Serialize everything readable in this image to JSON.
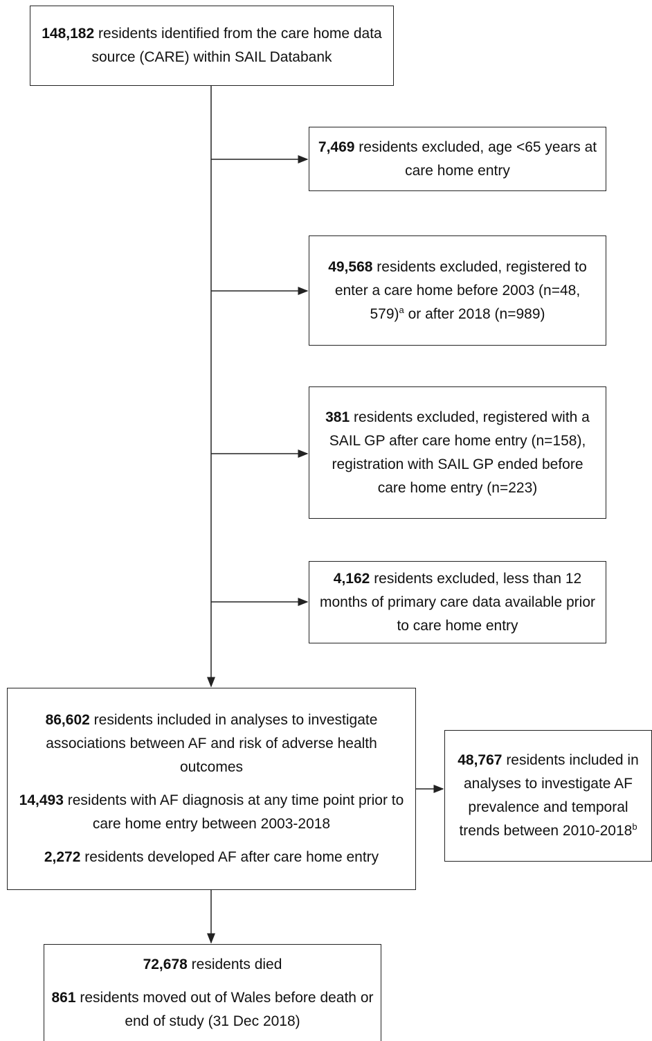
{
  "nodes": [
    {
      "paragraphs": [
        {
          "count": "148,182",
          "text": "residents identified from the care home data source (CARE) within SAIL Databank"
        }
      ]
    },
    {
      "paragraphs": [
        {
          "count": "7,469",
          "text": "residents excluded, age <65 years at care home entry"
        }
      ]
    },
    {
      "paragraphs": [
        {
          "count": "49,568",
          "text": "residents excluded, registered to enter a care home before 2003 (n=48, 579)",
          "sup": "a",
          "text2": "or after 2018 (n=989)"
        }
      ]
    },
    {
      "paragraphs": [
        {
          "count": "381",
          "text": "residents excluded, registered with a SAIL GP after care home entry (n=158), registration with SAIL GP ended before care home entry (n=223)"
        }
      ]
    },
    {
      "paragraphs": [
        {
          "count": "4,162",
          "text": "residents excluded, less than 12 months of primary care data available prior to care home entry"
        }
      ]
    },
    {
      "paragraphs": [
        {
          "count": "86,602",
          "text": "residents included in analyses to investigate associations between AF and risk of adverse health outcomes"
        },
        {
          "count": "14,493",
          "text": "residents with AF diagnosis at any time point prior to care home entry between 2003-2018"
        },
        {
          "count": "2,272",
          "text": "residents developed AF after care home entry"
        }
      ]
    },
    {
      "paragraphs": [
        {
          "count": "48,767",
          "text": "residents included in analyses to investigate AF prevalence and temporal trends between 2010-2018",
          "sup": "b"
        }
      ]
    },
    {
      "paragraphs": [
        {
          "count": "72,678",
          "text": "residents died"
        },
        {
          "count": "861",
          "text": "residents moved out of Wales before death or end of study (31 Dec 2018)"
        }
      ]
    }
  ]
}
